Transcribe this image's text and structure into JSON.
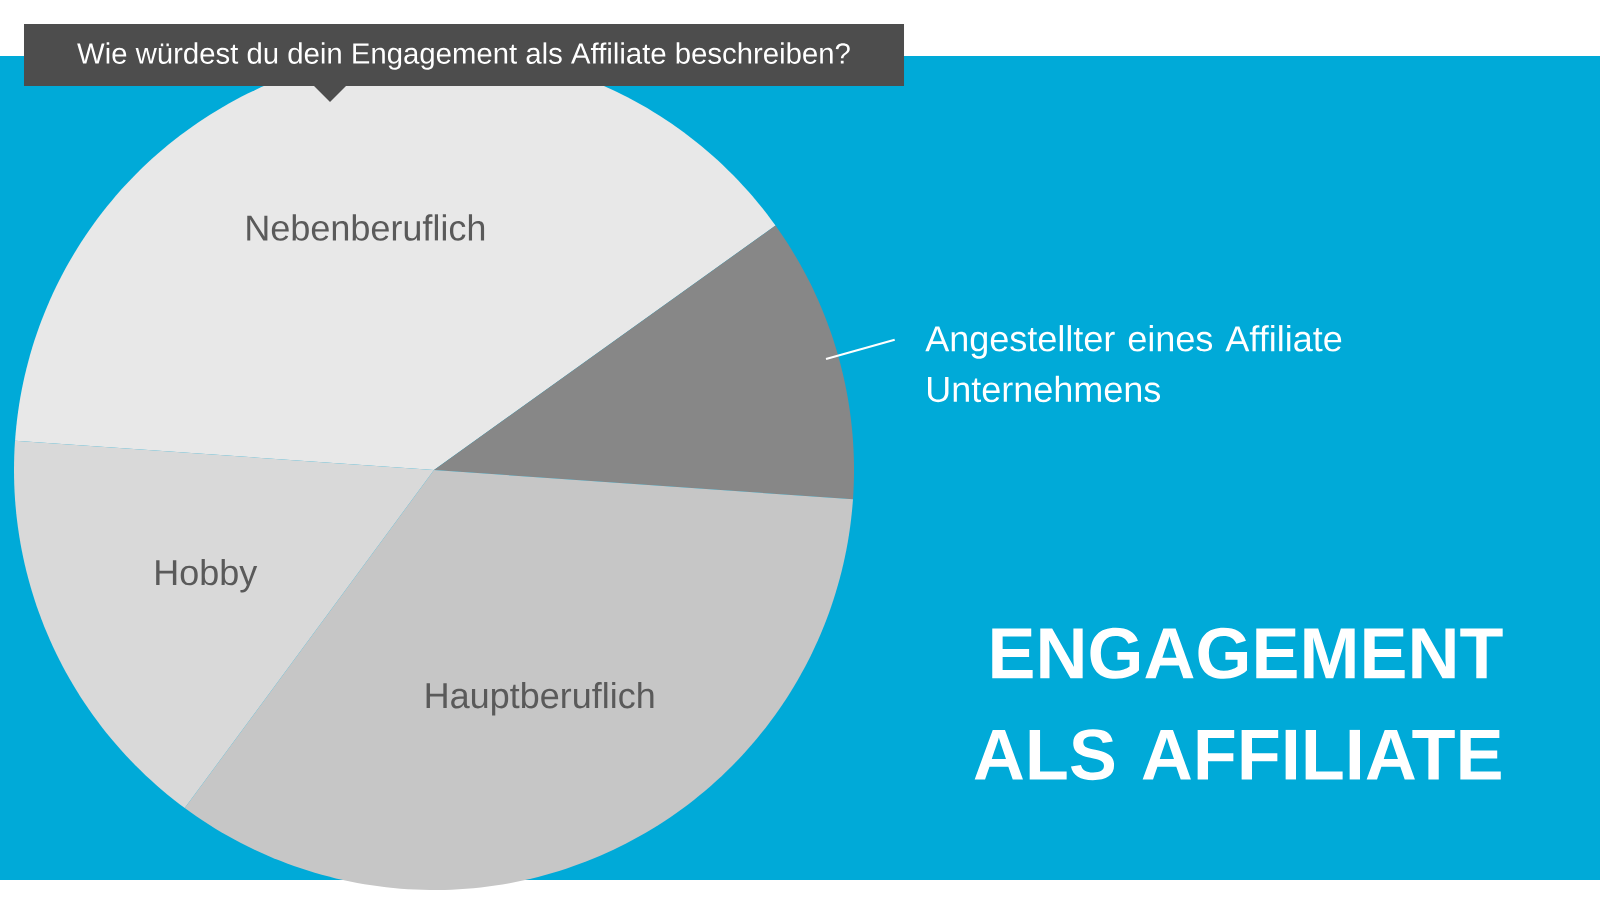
{
  "chart_data": {
    "type": "pie",
    "title": "ENGAGEMENT ALS AFFILIATE",
    "subtitle": "Wie würdest du dein Engagement als Affiliate beschreiben?",
    "categories": [
      "Nebenberuflich",
      "Angestellter eines Affiliate Unternehmens",
      "Hauptberuflich",
      "Hobby"
    ],
    "values": [
      39,
      11,
      34,
      16
    ],
    "colors": [
      "#e8e8e8",
      "#878787",
      "#c6c6c6",
      "#d9d9d9"
    ]
  }
}
